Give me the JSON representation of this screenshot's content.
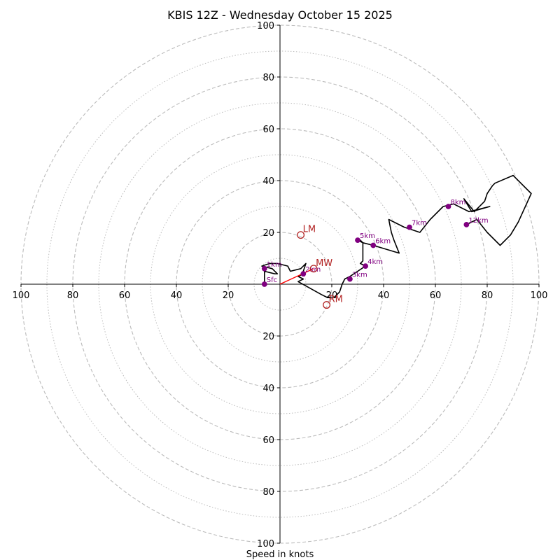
{
  "chart_data": {
    "type": "hodograph",
    "title": "KBIS 12Z - Wednesday October 15 2025",
    "xlabel": "Speed in knots",
    "axis_range_knots": [
      -100,
      100
    ],
    "ring_major_knots": [
      20,
      40,
      60,
      80,
      100
    ],
    "ring_minor_knots": [
      10,
      30,
      50,
      70,
      90
    ],
    "x_tick_values": [
      -100,
      -80,
      -60,
      -40,
      -20,
      20,
      40,
      60,
      80,
      100
    ],
    "x_tick_labels": [
      "100",
      "80",
      "60",
      "40",
      "20",
      "20",
      "40",
      "60",
      "80",
      "100"
    ],
    "y_tick_values": [
      100,
      80,
      60,
      40,
      20,
      -20,
      -40,
      -60,
      -80,
      -100
    ],
    "y_tick_labels": [
      "100",
      "80",
      "60",
      "40",
      "20",
      "20",
      "40",
      "60",
      "80",
      "100"
    ],
    "colors": {
      "trace": "#000000",
      "height_marker": "#800080",
      "motion": "#b22222",
      "shear_vector": "#ff0000",
      "grid": "#bbbbbb",
      "axis": "#000000"
    },
    "hodograph_trace": [
      [
        -6,
        0
      ],
      [
        -6,
        3
      ],
      [
        -6,
        5
      ],
      [
        -2,
        4
      ],
      [
        -1,
        4
      ],
      [
        -3,
        6
      ],
      [
        -7,
        7
      ],
      [
        -4,
        8
      ],
      [
        -1,
        8
      ],
      [
        3,
        7
      ],
      [
        4,
        5
      ],
      [
        8,
        6
      ],
      [
        10,
        8
      ],
      [
        9,
        5
      ],
      [
        9,
        4
      ],
      [
        7,
        3
      ],
      [
        9,
        2
      ],
      [
        7,
        1
      ],
      [
        16,
        -4
      ],
      [
        18,
        -5
      ],
      [
        21,
        -5
      ],
      [
        23,
        -3
      ],
      [
        24,
        0
      ],
      [
        25,
        2
      ],
      [
        27,
        3
      ],
      [
        30,
        5
      ],
      [
        33,
        7
      ],
      [
        31,
        8
      ],
      [
        32,
        9
      ],
      [
        31,
        8
      ],
      [
        32,
        9
      ],
      [
        32,
        13
      ],
      [
        32,
        16
      ],
      [
        31,
        17
      ],
      [
        30,
        17
      ],
      [
        32,
        16
      ],
      [
        36,
        15
      ],
      [
        46,
        12
      ],
      [
        44,
        17
      ],
      [
        43,
        20
      ],
      [
        42,
        25
      ],
      [
        48,
        22
      ],
      [
        51,
        21
      ],
      [
        54,
        20
      ],
      [
        58,
        25
      ],
      [
        63,
        30
      ],
      [
        67,
        31
      ],
      [
        73,
        28
      ],
      [
        81,
        30
      ],
      [
        74,
        28
      ],
      [
        71,
        33
      ],
      [
        75,
        28
      ],
      [
        79,
        32
      ],
      [
        80,
        35
      ],
      [
        82,
        38
      ],
      [
        83,
        39
      ],
      [
        90,
        42
      ],
      [
        97,
        35
      ],
      [
        92,
        24
      ],
      [
        89,
        19
      ],
      [
        85,
        15
      ],
      [
        80,
        20
      ],
      [
        76,
        25
      ],
      [
        72,
        23
      ]
    ],
    "height_markers": [
      {
        "label": "Sfc",
        "u": -6,
        "v": 0
      },
      {
        "label": "1km",
        "u": -6,
        "v": 6
      },
      {
        "label": "2km",
        "u": 9,
        "v": 4
      },
      {
        "label": "3km",
        "u": 27,
        "v": 2
      },
      {
        "label": "4km",
        "u": 33,
        "v": 7
      },
      {
        "label": "5km",
        "u": 30,
        "v": 17
      },
      {
        "label": "6km",
        "u": 36,
        "v": 15
      },
      {
        "label": "7km",
        "u": 50,
        "v": 22
      },
      {
        "label": "8km",
        "u": 65,
        "v": 30
      },
      {
        "label": "12km",
        "u": 72,
        "v": 23
      }
    ],
    "storm_motions": [
      {
        "label": "LM",
        "u": 8,
        "v": 19
      },
      {
        "label": "MW",
        "u": 13,
        "v": 6
      },
      {
        "label": "RM",
        "u": 18,
        "v": -8
      }
    ],
    "shear_vector": {
      "from": [
        0,
        0
      ],
      "to": [
        13,
        6
      ]
    }
  }
}
